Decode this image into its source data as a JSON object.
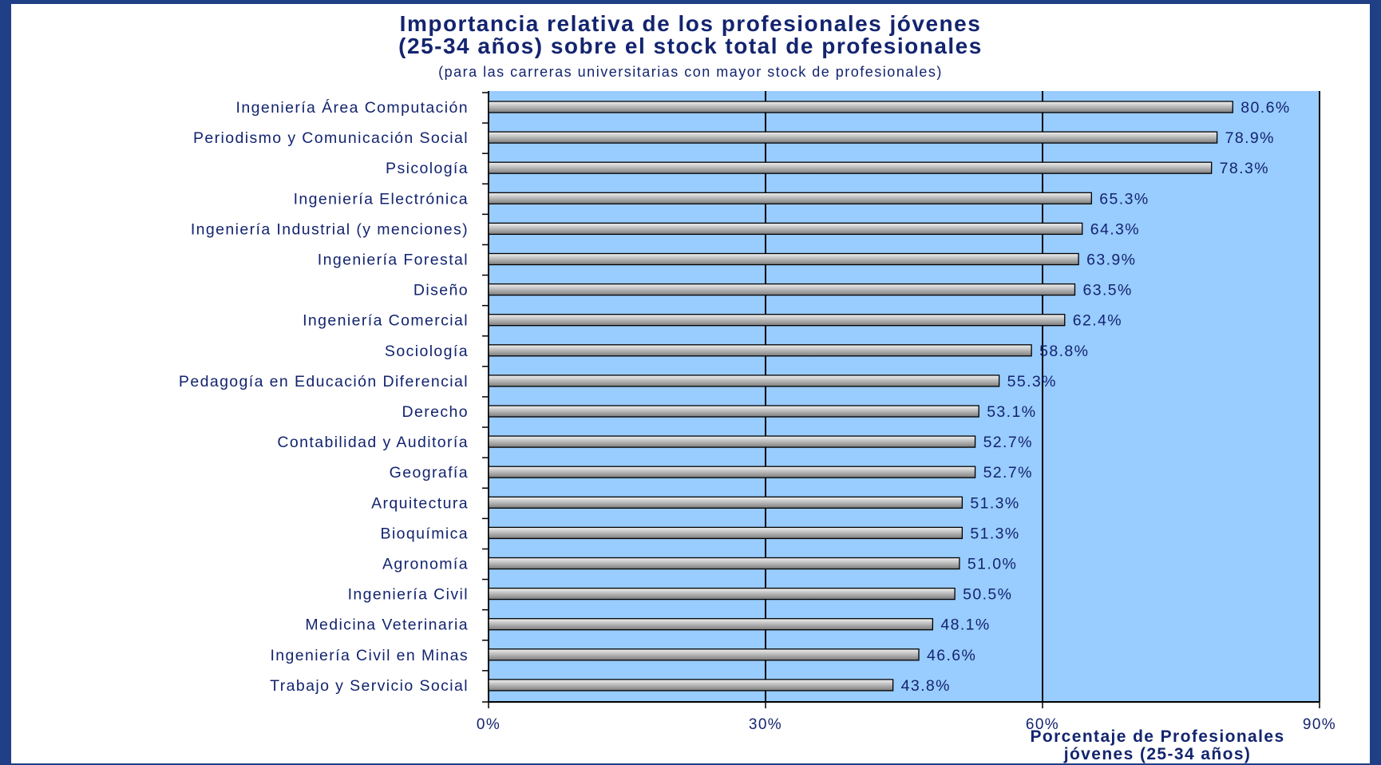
{
  "chart_data": {
    "type": "bar",
    "orientation": "horizontal",
    "title_line1": "Importancia relativa de los profesionales jóvenes",
    "title_line2": "(25-34 años) sobre el stock total de profesionales",
    "subtitle": "(para las carreras universitarias con mayor stock de profesionales)",
    "xlabel_line1": "Porcentaje de Profesionales",
    "xlabel_line2": "jóvenes (25-34 años)",
    "xlim": [
      0,
      90
    ],
    "x_ticks": [
      "0%",
      "30%",
      "60%",
      "90%"
    ],
    "x_tick_values": [
      0,
      30,
      60,
      90
    ],
    "grid": true,
    "plot_background": "#99ccff",
    "bar_color": "#b3b3b3",
    "categories": [
      "Ingeniería Área Computación",
      "Periodismo y Comunicación Social",
      "Psicología",
      "Ingeniería Electrónica",
      "Ingeniería Industrial (y menciones)",
      "Ingeniería Forestal",
      "Diseño",
      "Ingeniería Comercial",
      "Sociología",
      "Pedagogía en Educación Diferencial",
      "Derecho",
      "Contabilidad y Auditoría",
      "Geografía",
      "Arquitectura",
      "Bioquímica",
      "Agronomía",
      "Ingeniería Civil",
      "Medicina Veterinaria",
      "Ingeniería Civil en Minas",
      "Trabajo y Servicio Social"
    ],
    "values": [
      80.6,
      78.9,
      78.3,
      65.3,
      64.3,
      63.9,
      63.5,
      62.4,
      58.8,
      55.3,
      53.1,
      52.7,
      52.7,
      51.3,
      51.3,
      51.0,
      50.5,
      48.1,
      46.6,
      43.8
    ],
    "value_labels": [
      "80.6%",
      "78.9%",
      "78.3%",
      "65.3%",
      "64.3%",
      "63.9%",
      "63.5%",
      "62.4%",
      "58.8%",
      "55.3%",
      "53.1%",
      "52.7%",
      "52.7%",
      "51.3%",
      "51.3%",
      "51.0%",
      "50.5%",
      "48.1%",
      "46.6%",
      "43.8%"
    ]
  }
}
